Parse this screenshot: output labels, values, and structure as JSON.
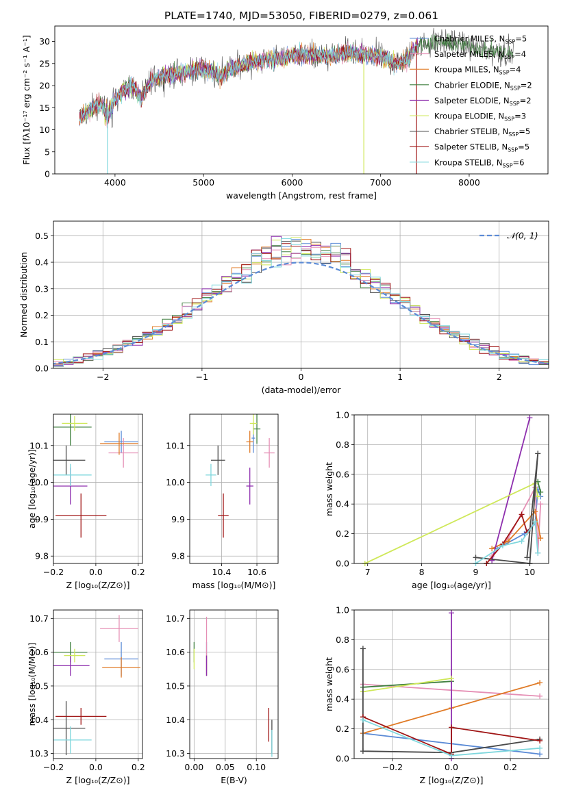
{
  "title": "PLATE=1740, MJD=53050, FIBERID=0279, z=0.061",
  "colors": {
    "Chabrier MILES": "#5b8bd6",
    "Salpeter MILES": "#e58fb5",
    "Kroupa MILES": "#e07b27",
    "Chabrier ELODIE": "#3f7f3f",
    "Salpeter ELODIE": "#8e2fae",
    "Kroupa ELODIE": "#cfe85a",
    "Chabrier STELIB": "#4a4a4a",
    "Salpeter STELIB": "#a01616",
    "Kroupa STELIB": "#7fd7dd",
    "normal": "#5b8bd6"
  },
  "legend": [
    {
      "model": "Chabrier MILES",
      "prefix": "Chabrier MILES, N",
      "sub": "SSP",
      "suffix": "=5"
    },
    {
      "model": "Salpeter MILES",
      "prefix": "Salpeter MILES, N",
      "sub": "SSP",
      "suffix": "=4"
    },
    {
      "model": "Kroupa MILES",
      "prefix": "Kroupa MILES, N",
      "sub": "SSP",
      "suffix": "=4"
    },
    {
      "model": "Chabrier ELODIE",
      "prefix": "Chabrier ELODIE, N",
      "sub": "SSP",
      "suffix": "=2"
    },
    {
      "model": "Salpeter ELODIE",
      "prefix": "Salpeter ELODIE, N",
      "sub": "SSP",
      "suffix": "=2"
    },
    {
      "model": "Kroupa ELODIE",
      "prefix": "Kroupa ELODIE, N",
      "sub": "SSP",
      "suffix": "=3"
    },
    {
      "model": "Chabrier STELIB",
      "prefix": "Chabrier STELIB, N",
      "sub": "SSP",
      "suffix": "=5"
    },
    {
      "model": "Salpeter STELIB",
      "prefix": "Salpeter STELIB, N",
      "sub": "SSP",
      "suffix": "=5"
    },
    {
      "model": "Kroupa STELIB",
      "prefix": "Kroupa STELIB, N",
      "sub": "SSP",
      "suffix": "=6"
    }
  ],
  "chart_data": [
    {
      "id": "spectrum",
      "type": "line",
      "xlabel": "wavelength [Angstrom, rest frame]",
      "ylabel": "Flux [fλ10⁻¹⁷ erg cm⁻² s⁻¹ A⁻¹]",
      "xlim": [
        3320,
        8890
      ],
      "ylim": [
        0,
        33.5
      ],
      "xticks": [
        4000,
        5000,
        6000,
        7000,
        8000
      ],
      "yticks": [
        0,
        5,
        10,
        15,
        20,
        25,
        30
      ],
      "grid": false,
      "legend": "right",
      "continuum": [
        [
          3600,
          13
        ],
        [
          3700,
          14
        ],
        [
          3800,
          16
        ],
        [
          3900,
          15
        ],
        [
          4000,
          17
        ],
        [
          4100,
          19
        ],
        [
          4200,
          20
        ],
        [
          4300,
          17
        ],
        [
          4400,
          21
        ],
        [
          4600,
          22.5
        ],
        [
          4800,
          23
        ],
        [
          5000,
          24
        ],
        [
          5200,
          22
        ],
        [
          5300,
          24
        ],
        [
          5500,
          25
        ],
        [
          5700,
          26
        ],
        [
          5900,
          26
        ],
        [
          6000,
          27
        ],
        [
          6200,
          27
        ],
        [
          6400,
          26.5
        ],
        [
          6600,
          27.5
        ],
        [
          6800,
          27
        ],
        [
          7000,
          26.5
        ],
        [
          7200,
          25
        ],
        [
          7300,
          26
        ],
        [
          7400,
          29
        ],
        [
          7600,
          30
        ],
        [
          7800,
          29.5
        ],
        [
          8000,
          29
        ],
        [
          8200,
          28
        ],
        [
          8400,
          27.5
        ],
        [
          8500,
          27
        ]
      ],
      "spikes": [
        [
          3915,
          0
        ],
        [
          6810,
          0
        ],
        [
          7405,
          0
        ]
      ]
    },
    {
      "id": "residuals",
      "type": "histogram",
      "xlabel": "(data-model)/error",
      "ylabel": "Normed distribution",
      "xlim": [
        -2.5,
        2.5
      ],
      "ylim": [
        0,
        0.555
      ],
      "xticks": [
        -2,
        -1,
        0,
        1,
        2
      ],
      "yticks": [
        0.0,
        0.1,
        0.2,
        0.3,
        0.4,
        0.5
      ],
      "grid": true,
      "bin_width": 0.1,
      "legend_label": "𝒩(0, 1)",
      "legend": "top-right"
    },
    {
      "id": "z_age",
      "type": "errorbar",
      "xlabel": "Z [log₁₀(Z/Z⊙)]",
      "ylabel": "age  [log₁₀(age/yr)]",
      "xlim": [
        -0.2,
        0.22
      ],
      "ylim": [
        9.78,
        10.185
      ],
      "xticks": [
        -0.2,
        0.0,
        0.2
      ],
      "yticks": [
        9.8,
        9.9,
        10.0,
        10.1
      ],
      "grid": true,
      "points": [
        {
          "model": "Chabrier MILES",
          "x": 0.12,
          "xerr": 0.08,
          "y": 10.11,
          "yerr": 0.03
        },
        {
          "model": "Salpeter MILES",
          "x": 0.13,
          "xerr": 0.07,
          "y": 10.08,
          "yerr": 0.04
        },
        {
          "model": "Kroupa MILES",
          "x": 0.11,
          "xerr": 0.09,
          "y": 10.105,
          "yerr": 0.03
        },
        {
          "model": "Chabrier ELODIE",
          "x": -0.12,
          "xerr": 0.1,
          "y": 10.15,
          "yerr": 0.05
        },
        {
          "model": "Salpeter ELODIE",
          "x": -0.12,
          "xerr": 0.08,
          "y": 9.99,
          "yerr": 0.05
        },
        {
          "model": "Kroupa ELODIE",
          "x": -0.1,
          "xerr": 0.06,
          "y": 10.16,
          "yerr": 0.02
        },
        {
          "model": "Chabrier STELIB",
          "x": -0.14,
          "xerr": 0.09,
          "y": 10.06,
          "yerr": 0.04
        },
        {
          "model": "Salpeter STELIB",
          "x": -0.07,
          "xerr": 0.12,
          "y": 9.91,
          "yerr": 0.06
        },
        {
          "model": "Kroupa STELIB",
          "x": -0.12,
          "xerr": 0.1,
          "y": 10.02,
          "yerr": 0.03
        }
      ]
    },
    {
      "id": "mass_age",
      "type": "errorbar",
      "xlabel": "mass [log₁₀(M/M⊙)]",
      "ylabel": "",
      "xlim": [
        10.22,
        10.72
      ],
      "ylim": [
        9.78,
        10.185
      ],
      "xticks": [
        10.4,
        10.6
      ],
      "yticks": [
        9.8,
        9.9,
        10.0,
        10.1
      ],
      "grid": true,
      "points": [
        {
          "model": "Chabrier MILES",
          "x": 10.58,
          "xerr": 0.01,
          "y": 10.12,
          "yerr": 0.04
        },
        {
          "model": "Salpeter MILES",
          "x": 10.67,
          "xerr": 0.03,
          "y": 10.08,
          "yerr": 0.04
        },
        {
          "model": "Kroupa MILES",
          "x": 10.56,
          "xerr": 0.02,
          "y": 10.11,
          "yerr": 0.03
        },
        {
          "model": "Chabrier ELODIE",
          "x": 10.6,
          "xerr": 0.02,
          "y": 10.145,
          "yerr": 0.04
        },
        {
          "model": "Salpeter ELODIE",
          "x": 10.56,
          "xerr": 0.02,
          "y": 9.99,
          "yerr": 0.05
        },
        {
          "model": "Kroupa ELODIE",
          "x": 10.58,
          "xerr": 0.02,
          "y": 10.16,
          "yerr": 0.03
        },
        {
          "model": "Chabrier STELIB",
          "x": 10.38,
          "xerr": 0.04,
          "y": 10.06,
          "yerr": 0.04
        },
        {
          "model": "Salpeter STELIB",
          "x": 10.41,
          "xerr": 0.03,
          "y": 9.91,
          "yerr": 0.06
        },
        {
          "model": "Kroupa STELIB",
          "x": 10.34,
          "xerr": 0.03,
          "y": 10.02,
          "yerr": 0.03
        }
      ]
    },
    {
      "id": "age_weight",
      "type": "line",
      "xlabel": "age  [log₁₀(age/yr)]",
      "ylabel": "mass weight",
      "xlim": [
        6.75,
        10.35
      ],
      "ylim": [
        0,
        1.0
      ],
      "xticks": [
        7,
        8,
        9,
        10
      ],
      "yticks": [
        0.0,
        0.2,
        0.4,
        0.6,
        0.8,
        1.0
      ],
      "grid": true,
      "series": [
        {
          "model": "Chabrier MILES",
          "points": [
            [
              9.4,
              0.1
            ],
            [
              9.9,
              0.2
            ],
            [
              10.1,
              0.27
            ],
            [
              10.15,
              0.5
            ],
            [
              10.2,
              0.45
            ]
          ]
        },
        {
          "model": "Salpeter MILES",
          "points": [
            [
              9.3,
              0.05
            ],
            [
              9.6,
              0.17
            ],
            [
              10.1,
              0.51
            ],
            [
              10.15,
              0.07
            ],
            [
              10.2,
              0.4
            ]
          ]
        },
        {
          "model": "Kroupa MILES",
          "points": [
            [
              9.3,
              0.1
            ],
            [
              9.6,
              0.15
            ],
            [
              10.1,
              0.35
            ],
            [
              10.2,
              0.17
            ]
          ]
        },
        {
          "model": "Chabrier ELODIE",
          "points": [
            [
              10.15,
              0.55
            ],
            [
              10.2,
              0.48
            ]
          ]
        },
        {
          "model": "Salpeter ELODIE",
          "points": [
            [
              9.3,
              0.02
            ],
            [
              10.0,
              0.98
            ]
          ]
        },
        {
          "model": "Kroupa ELODIE",
          "points": [
            [
              6.95,
              0.0
            ],
            [
              10.1,
              0.54
            ],
            [
              10.15,
              0.45
            ]
          ]
        },
        {
          "model": "Chabrier STELIB",
          "points": [
            [
              9.0,
              0.04
            ],
            [
              10.0,
              0.0
            ],
            [
              10.15,
              0.74
            ],
            [
              9.95,
              0.04
            ]
          ]
        },
        {
          "model": "Salpeter STELIB",
          "points": [
            [
              9.2,
              0.0
            ],
            [
              9.5,
              0.13
            ],
            [
              9.85,
              0.33
            ],
            [
              9.95,
              0.21
            ],
            [
              10.1,
              0.28
            ]
          ]
        },
        {
          "model": "Kroupa STELIB",
          "points": [
            [
              9.0,
              0.0
            ],
            [
              9.5,
              0.12
            ],
            [
              9.85,
              0.15
            ],
            [
              10.1,
              0.28
            ],
            [
              10.15,
              0.07
            ]
          ]
        }
      ]
    },
    {
      "id": "z_mass",
      "type": "errorbar",
      "xlabel": "Z [log₁₀(Z/Z⊙)]",
      "ylabel": "mass [log₁₀(M/M⊙)]",
      "xlim": [
        -0.2,
        0.22
      ],
      "ylim": [
        10.285,
        10.725
      ],
      "xticks": [
        -0.2,
        0.0,
        0.2
      ],
      "yticks": [
        10.3,
        10.4,
        10.5,
        10.6,
        10.7
      ],
      "grid": true,
      "points": [
        {
          "model": "Chabrier MILES",
          "x": 0.12,
          "xerr": 0.08,
          "y": 10.58,
          "yerr": 0.05
        },
        {
          "model": "Salpeter MILES",
          "x": 0.11,
          "xerr": 0.09,
          "y": 10.67,
          "yerr": 0.04
        },
        {
          "model": "Kroupa MILES",
          "x": 0.12,
          "xerr": 0.09,
          "y": 10.555,
          "yerr": 0.03
        },
        {
          "model": "Chabrier ELODIE",
          "x": -0.12,
          "xerr": 0.08,
          "y": 10.6,
          "yerr": 0.03
        },
        {
          "model": "Salpeter ELODIE",
          "x": -0.12,
          "xerr": 0.09,
          "y": 10.56,
          "yerr": 0.03
        },
        {
          "model": "Kroupa ELODIE",
          "x": -0.1,
          "xerr": 0.05,
          "y": 10.59,
          "yerr": 0.02
        },
        {
          "model": "Chabrier STELIB",
          "x": -0.14,
          "xerr": 0.09,
          "y": 10.375,
          "yerr": 0.08
        },
        {
          "model": "Salpeter STELIB",
          "x": -0.07,
          "xerr": 0.12,
          "y": 10.41,
          "yerr": 0.025
        },
        {
          "model": "Kroupa STELIB",
          "x": -0.12,
          "xerr": 0.1,
          "y": 10.34,
          "yerr": 0.04
        }
      ]
    },
    {
      "id": "ebv_mass",
      "type": "errorbar",
      "xlabel": "E(B-V)",
      "ylabel": "",
      "xlim": [
        -0.007,
        0.135
      ],
      "ylim": [
        10.285,
        10.725
      ],
      "xticks": [
        0.0,
        0.05,
        0.1
      ],
      "yticks": [
        10.3,
        10.4,
        10.5,
        10.6,
        10.7
      ],
      "grid": true,
      "points": [
        {
          "model": "Chabrier MILES",
          "x": 0.02,
          "xerr": 0.0,
          "y": 10.58,
          "yerr": 0.05
        },
        {
          "model": "Salpeter MILES",
          "x": 0.02,
          "xerr": 0.0,
          "y": 10.625,
          "yerr": 0.08
        },
        {
          "model": "Kroupa MILES",
          "x": 0.02,
          "xerr": 0.0,
          "y": 10.56,
          "yerr": 0.03
        },
        {
          "model": "Chabrier ELODIE",
          "x": 0.0,
          "xerr": 0.0,
          "y": 10.6,
          "yerr": 0.03
        },
        {
          "model": "Salpeter ELODIE",
          "x": 0.02,
          "xerr": 0.0,
          "y": 10.56,
          "yerr": 0.03
        },
        {
          "model": "Kroupa ELODIE",
          "x": 0.0,
          "xerr": 0.0,
          "y": 10.58,
          "yerr": 0.03
        },
        {
          "model": "Chabrier STELIB",
          "x": 0.125,
          "xerr": 0.0,
          "y": 10.35,
          "yerr": 0.05
        },
        {
          "model": "Salpeter STELIB",
          "x": 0.12,
          "xerr": 0.0,
          "y": 10.385,
          "yerr": 0.05
        },
        {
          "model": "Kroupa STELIB",
          "x": 0.125,
          "xerr": 0.0,
          "y": 10.33,
          "yerr": 0.04
        }
      ]
    },
    {
      "id": "z_weight",
      "type": "line",
      "xlabel": "Z [log₁₀(Z/Z⊙)]",
      "ylabel": "mass weight",
      "xlim": [
        -0.33,
        0.33
      ],
      "ylim": [
        0,
        1.0
      ],
      "xticks": [
        -0.2,
        0.0,
        0.2
      ],
      "yticks": [
        0.0,
        0.2,
        0.4,
        0.6,
        0.8,
        1.0
      ],
      "grid": true,
      "series": [
        {
          "model": "Chabrier MILES",
          "points": [
            [
              -0.3,
              0.17
            ],
            [
              0.0,
              0.1
            ],
            [
              0.3,
              0.03
            ]
          ]
        },
        {
          "model": "Salpeter MILES",
          "points": [
            [
              -0.3,
              0.5
            ],
            [
              0.3,
              0.42
            ]
          ]
        },
        {
          "model": "Kroupa MILES",
          "points": [
            [
              -0.3,
              0.17
            ],
            [
              0.0,
              0.34
            ],
            [
              0.3,
              0.51
            ]
          ]
        },
        {
          "model": "Chabrier ELODIE",
          "points": [
            [
              -0.3,
              0.48
            ],
            [
              0.0,
              0.52
            ]
          ]
        },
        {
          "model": "Salpeter ELODIE",
          "points": [
            [
              0.0,
              0.0
            ],
            [
              0.0,
              0.98
            ]
          ]
        },
        {
          "model": "Kroupa ELODIE",
          "points": [
            [
              -0.3,
              0.45
            ],
            [
              0.0,
              0.54
            ]
          ]
        },
        {
          "model": "Chabrier STELIB",
          "points": [
            [
              -0.3,
              0.74
            ],
            [
              -0.3,
              0.05
            ],
            [
              0.0,
              0.04
            ],
            [
              0.3,
              0.13
            ]
          ]
        },
        {
          "model": "Salpeter STELIB",
          "points": [
            [
              -0.3,
              0.28
            ],
            [
              0.0,
              0.03
            ],
            [
              0.0,
              0.21
            ],
            [
              0.3,
              0.12
            ]
          ]
        },
        {
          "model": "Kroupa STELIB",
          "points": [
            [
              -0.3,
              0.26
            ],
            [
              0.0,
              0.02
            ],
            [
              0.3,
              0.07
            ]
          ]
        }
      ]
    }
  ]
}
